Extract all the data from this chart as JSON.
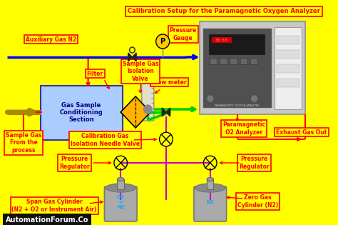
{
  "title": "Calibration Setup for the Paramagnetic Oxygen Analyzer",
  "background_color": "#FFFF00",
  "label_bg": "#FFFF00",
  "label_border": "#FF0000",
  "label_text_color": "#FF0000",
  "blue_line_color": "#0000FF",
  "green_line_color": "#00CC00",
  "red_line_color": "#FF0000",
  "magenta_line_color": "#CC00CC",
  "labels": {
    "auxiliary_gas": "Auxiliary Gas N2",
    "pressure_gauge": "Pressure\nGauge",
    "flow_meter": "Flow meter",
    "sample_gas_valve": "Sample Gas\nIsolation\nValve",
    "filter": "Filter",
    "conditioning": "Gas Sample\nConditioning\nSection",
    "sample_gas_from": "Sample Gas\nFrom the\nprocess",
    "cal_gas_needle": "Calibration Gas\nIsolation Needle Valve",
    "paramagnetic": "Paramagnetic\nO2 Analyzer",
    "exhaust": "Exhaust Gas Out",
    "pressure_reg_left": "Pressure\nRegulator",
    "pressure_reg_right": "Pressure\nRegulator",
    "span_gas": "Span Gas Cylinder\n(N2 + O2 or Instrument Air)",
    "zero_gas": "Zero Gas\nCylinder (N2)",
    "watermark": "AutomationForum.Co"
  }
}
